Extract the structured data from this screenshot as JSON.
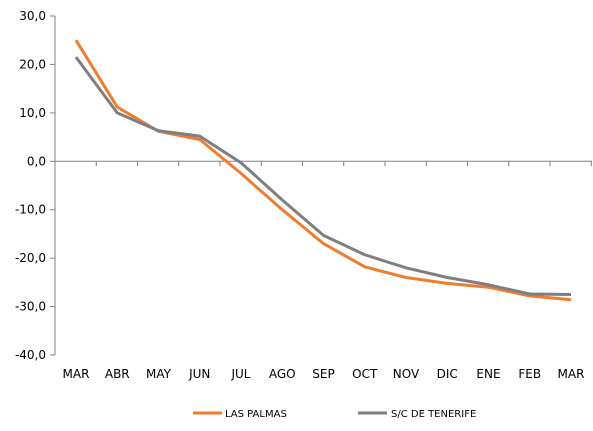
{
  "chart_data": {
    "type": "line",
    "title": "",
    "xlabel": "",
    "ylabel": "",
    "categories": [
      "MAR",
      "ABR",
      "MAY",
      "JUN",
      "JUL",
      "AGO",
      "SEP",
      "OCT",
      "NOV",
      "DIC",
      "ENE",
      "FEB",
      "MAR"
    ],
    "ylim": [
      -40,
      30
    ],
    "yticks": [
      30,
      20,
      10,
      0,
      -10,
      -20,
      -30,
      -40
    ],
    "ytick_labels": [
      "30,0",
      "20,0",
      "10,0",
      "0,0",
      "-10,0",
      "-20,0",
      "-30,0",
      "-40,0"
    ],
    "grid": false,
    "legend_position": "bottom",
    "series": [
      {
        "name": "LAS PALMAS",
        "color": "#ED7D31",
        "values": [
          25.0,
          11.2,
          6.2,
          4.5,
          -2.5,
          -10.0,
          -17.0,
          -21.8,
          -24.0,
          -25.2,
          -26.0,
          -27.8,
          -28.6
        ]
      },
      {
        "name": "S/C DE TENERIFE",
        "color": "#7F7F7F",
        "values": [
          21.5,
          10.0,
          6.3,
          5.2,
          -0.3,
          -8.0,
          -15.3,
          -19.3,
          -22.0,
          -24.0,
          -25.5,
          -27.4,
          -27.5
        ]
      }
    ]
  }
}
